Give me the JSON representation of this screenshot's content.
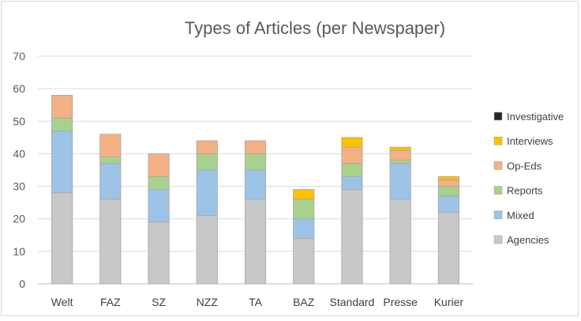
{
  "chart_data": {
    "type": "bar",
    "stacked": true,
    "title": "Types of Articles (per Newspaper)",
    "xlabel": "",
    "ylabel": "",
    "ylim": [
      0,
      70
    ],
    "yticks": [
      0,
      10,
      20,
      30,
      40,
      50,
      60,
      70
    ],
    "grid": true,
    "legend_position": "right",
    "categories": [
      "Welt",
      "FAZ",
      "SZ",
      "NZZ",
      "TA",
      "BAZ",
      "Standard",
      "Presse",
      "Kurier"
    ],
    "series": [
      {
        "name": "Agencies",
        "color": "#c8c8c8",
        "values": [
          28,
          26,
          19,
          21,
          26,
          14,
          29,
          26,
          22
        ]
      },
      {
        "name": "Mixed",
        "color": "#9dc3e6",
        "values": [
          19,
          11,
          10,
          14,
          9,
          6,
          4,
          11,
          5
        ]
      },
      {
        "name": "Reports",
        "color": "#a9d18e",
        "values": [
          4,
          2,
          4,
          5,
          5,
          6,
          4,
          1,
          3
        ]
      },
      {
        "name": "Op-Eds",
        "color": "#f4b183",
        "values": [
          7,
          7,
          7,
          4,
          4,
          0,
          5,
          3,
          2
        ]
      },
      {
        "name": "Interviews",
        "color": "#ffc000",
        "values": [
          0,
          0,
          0,
          0,
          0,
          3,
          3,
          1,
          1
        ]
      },
      {
        "name": "Investigative",
        "color": "#262626",
        "values": [
          0,
          0,
          0,
          0,
          0,
          0,
          0,
          0,
          0
        ]
      }
    ],
    "legend_order": [
      "Investigative",
      "Interviews",
      "Op-Eds",
      "Reports",
      "Mixed",
      "Agencies"
    ]
  }
}
